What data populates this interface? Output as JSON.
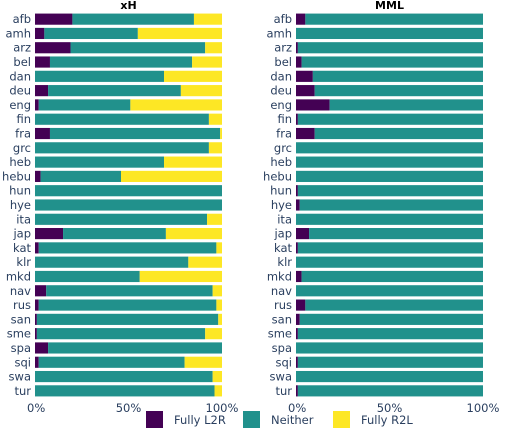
{
  "chart_data": [
    {
      "type": "bar",
      "orientation": "horizontal",
      "stacked": true,
      "title": "xH",
      "categories": [
        "afb",
        "amh",
        "arz",
        "bel",
        "dan",
        "deu",
        "eng",
        "fin",
        "fra",
        "grc",
        "heb",
        "hebu",
        "hun",
        "hye",
        "ita",
        "jap",
        "kat",
        "klr",
        "mkd",
        "nav",
        "rus",
        "san",
        "sme",
        "spa",
        "sqi",
        "swa",
        "tur"
      ],
      "series": [
        {
          "name": "Fully L2R",
          "color": "#440154",
          "values": [
            20,
            5,
            19,
            8,
            0,
            7,
            2,
            0,
            8,
            0,
            0,
            3,
            0,
            0,
            0,
            15,
            2,
            0,
            0,
            6,
            2,
            1,
            1,
            7,
            2,
            0,
            0
          ]
        },
        {
          "name": "Neither",
          "color": "#21918c",
          "values": [
            65,
            50,
            72,
            76,
            69,
            71,
            49,
            93,
            91,
            93,
            69,
            43,
            100,
            100,
            92,
            55,
            95,
            82,
            56,
            89,
            95,
            97,
            90,
            93,
            78,
            95,
            96
          ]
        },
        {
          "name": "Fully R2L",
          "color": "#fde725",
          "values": [
            15,
            45,
            9,
            16,
            31,
            22,
            49,
            7,
            1,
            7,
            31,
            54,
            0,
            0,
            8,
            30,
            3,
            18,
            44,
            5,
            3,
            2,
            9,
            0,
            20,
            5,
            4
          ]
        }
      ],
      "xlim": [
        0,
        100
      ],
      "xticks": [
        "0%",
        "50%",
        "100%"
      ]
    },
    {
      "type": "bar",
      "orientation": "horizontal",
      "stacked": true,
      "title": "MML",
      "categories": [
        "afb",
        "amh",
        "arz",
        "bel",
        "dan",
        "deu",
        "eng",
        "fin",
        "fra",
        "grc",
        "heb",
        "hebu",
        "hun",
        "hye",
        "ita",
        "jap",
        "kat",
        "klr",
        "mkd",
        "nav",
        "rus",
        "san",
        "sme",
        "spa",
        "sqi",
        "swa",
        "tur"
      ],
      "series": [
        {
          "name": "Fully L2R",
          "color": "#440154",
          "values": [
            5,
            0,
            1,
            3,
            9,
            10,
            18,
            1,
            10,
            0,
            0,
            0,
            1,
            2,
            0,
            7,
            1,
            0,
            3,
            0,
            5,
            2,
            1,
            0,
            1,
            0,
            1
          ]
        },
        {
          "name": "Neither",
          "color": "#21918c",
          "values": [
            95,
            100,
            99,
            97,
            91,
            90,
            82,
            99,
            90,
            100,
            100,
            100,
            99,
            98,
            100,
            93,
            99,
            100,
            97,
            100,
            95,
            98,
            99,
            100,
            99,
            100,
            99
          ]
        },
        {
          "name": "Fully R2L",
          "color": "#fde725",
          "values": [
            0,
            0,
            0,
            0,
            0,
            0,
            0,
            0,
            0,
            0,
            0,
            0,
            0,
            0,
            0,
            0,
            0,
            0,
            0,
            0,
            0,
            0,
            0,
            0,
            0,
            0,
            0
          ]
        }
      ],
      "xlim": [
        0,
        100
      ],
      "xticks": [
        "0%",
        "50%",
        "100%"
      ]
    }
  ],
  "legend": {
    "placement": "bottom",
    "items": [
      {
        "label": "Fully L2R",
        "color": "#440154"
      },
      {
        "label": "Neither",
        "color": "#21918c"
      },
      {
        "label": "Fully R2L",
        "color": "#fde725"
      }
    ]
  }
}
